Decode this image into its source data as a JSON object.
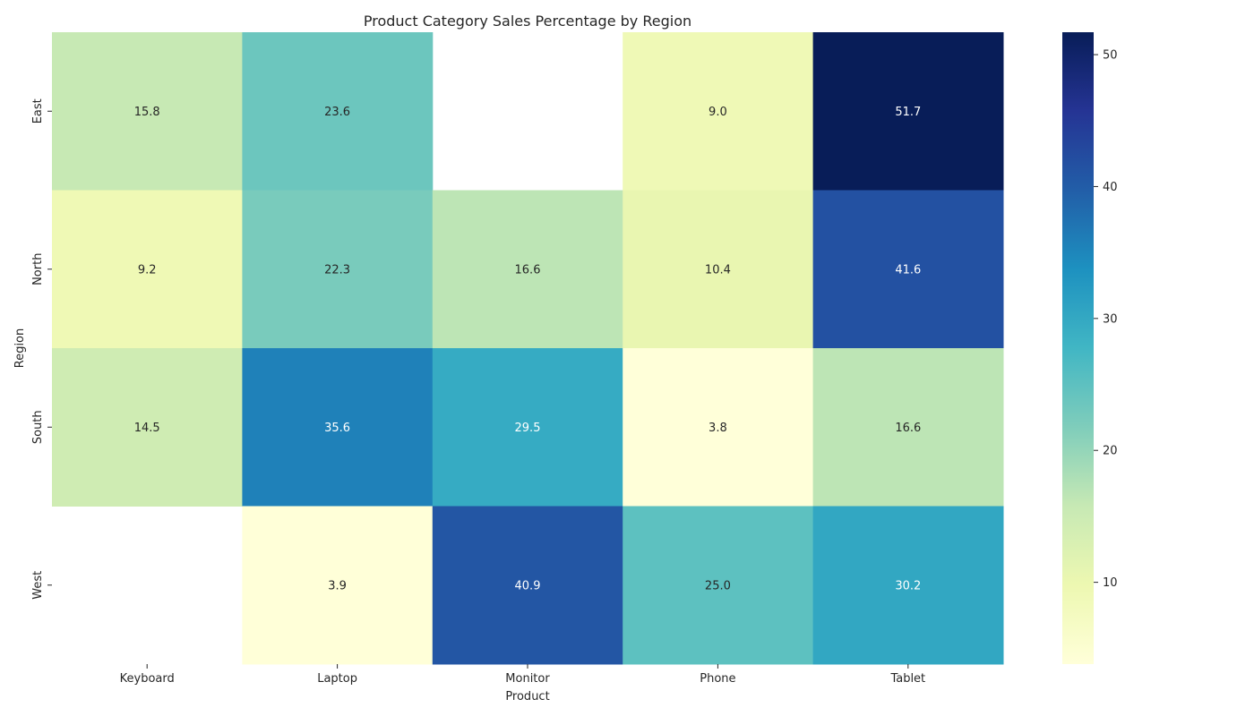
{
  "chart_data": {
    "type": "heatmap",
    "title": "Product Category Sales Percentage by Region",
    "xlabel": "Product",
    "ylabel": "Region",
    "x_categories": [
      "Keyboard",
      "Laptop",
      "Monitor",
      "Phone",
      "Tablet"
    ],
    "y_categories": [
      "East",
      "North",
      "South",
      "West"
    ],
    "values": [
      [
        15.8,
        23.6,
        null,
        9.0,
        51.7
      ],
      [
        9.2,
        22.3,
        16.6,
        10.4,
        41.6
      ],
      [
        14.5,
        35.6,
        29.5,
        3.8,
        16.6
      ],
      [
        null,
        3.9,
        40.9,
        25.0,
        30.2
      ]
    ],
    "colormap": "YlGnBu",
    "colorbar": {
      "range": [
        3.8,
        51.7
      ],
      "ticks": [
        10,
        20,
        30,
        40,
        50
      ]
    },
    "annotations": true,
    "missing_cells_blank": true
  }
}
